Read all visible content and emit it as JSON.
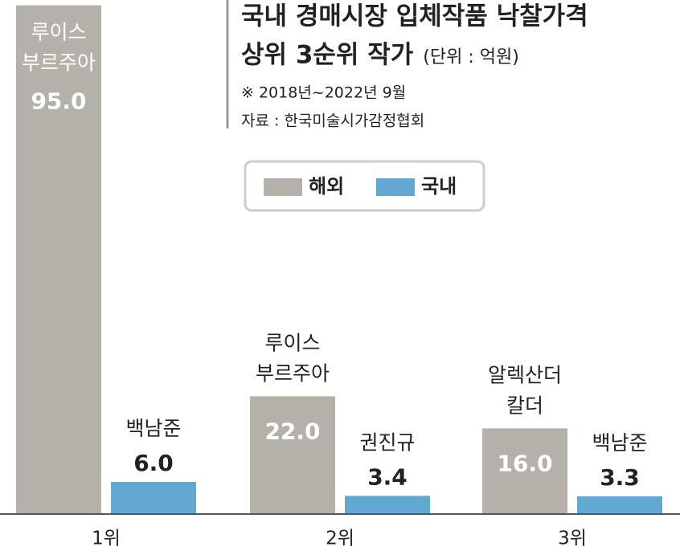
{
  "chart_data": {
    "type": "bar",
    "title": [
      "국내 경매시장 입체작품 낙찰가격",
      "상위 3순위 작가"
    ],
    "unit": "(단위 : 억원)",
    "notes": [
      "※ 2018년~2022년 9월",
      "자료 : 한국미술시가감정협회"
    ],
    "categories": [
      "1위",
      "2위",
      "3위"
    ],
    "ylim": [
      0,
      96
    ],
    "legend": "top",
    "series": [
      {
        "name": "해외",
        "color": "#b4b1aa",
        "values": [
          95.0,
          22.0,
          16.0
        ],
        "value_labels": [
          "95.0",
          "22.0",
          "16.0"
        ],
        "artists": [
          [
            "루이스",
            "부르주아"
          ],
          [
            "루이스",
            "부르주아"
          ],
          [
            "알렉산더",
            "칼더"
          ]
        ]
      },
      {
        "name": "국내",
        "color": "#62a8d3",
        "values": [
          6.0,
          3.4,
          3.3
        ],
        "value_labels": [
          "6.0",
          "3.4",
          "3.3"
        ],
        "artists": [
          [
            "백남준"
          ],
          [
            "권진규"
          ],
          [
            "백남준"
          ]
        ]
      }
    ]
  }
}
